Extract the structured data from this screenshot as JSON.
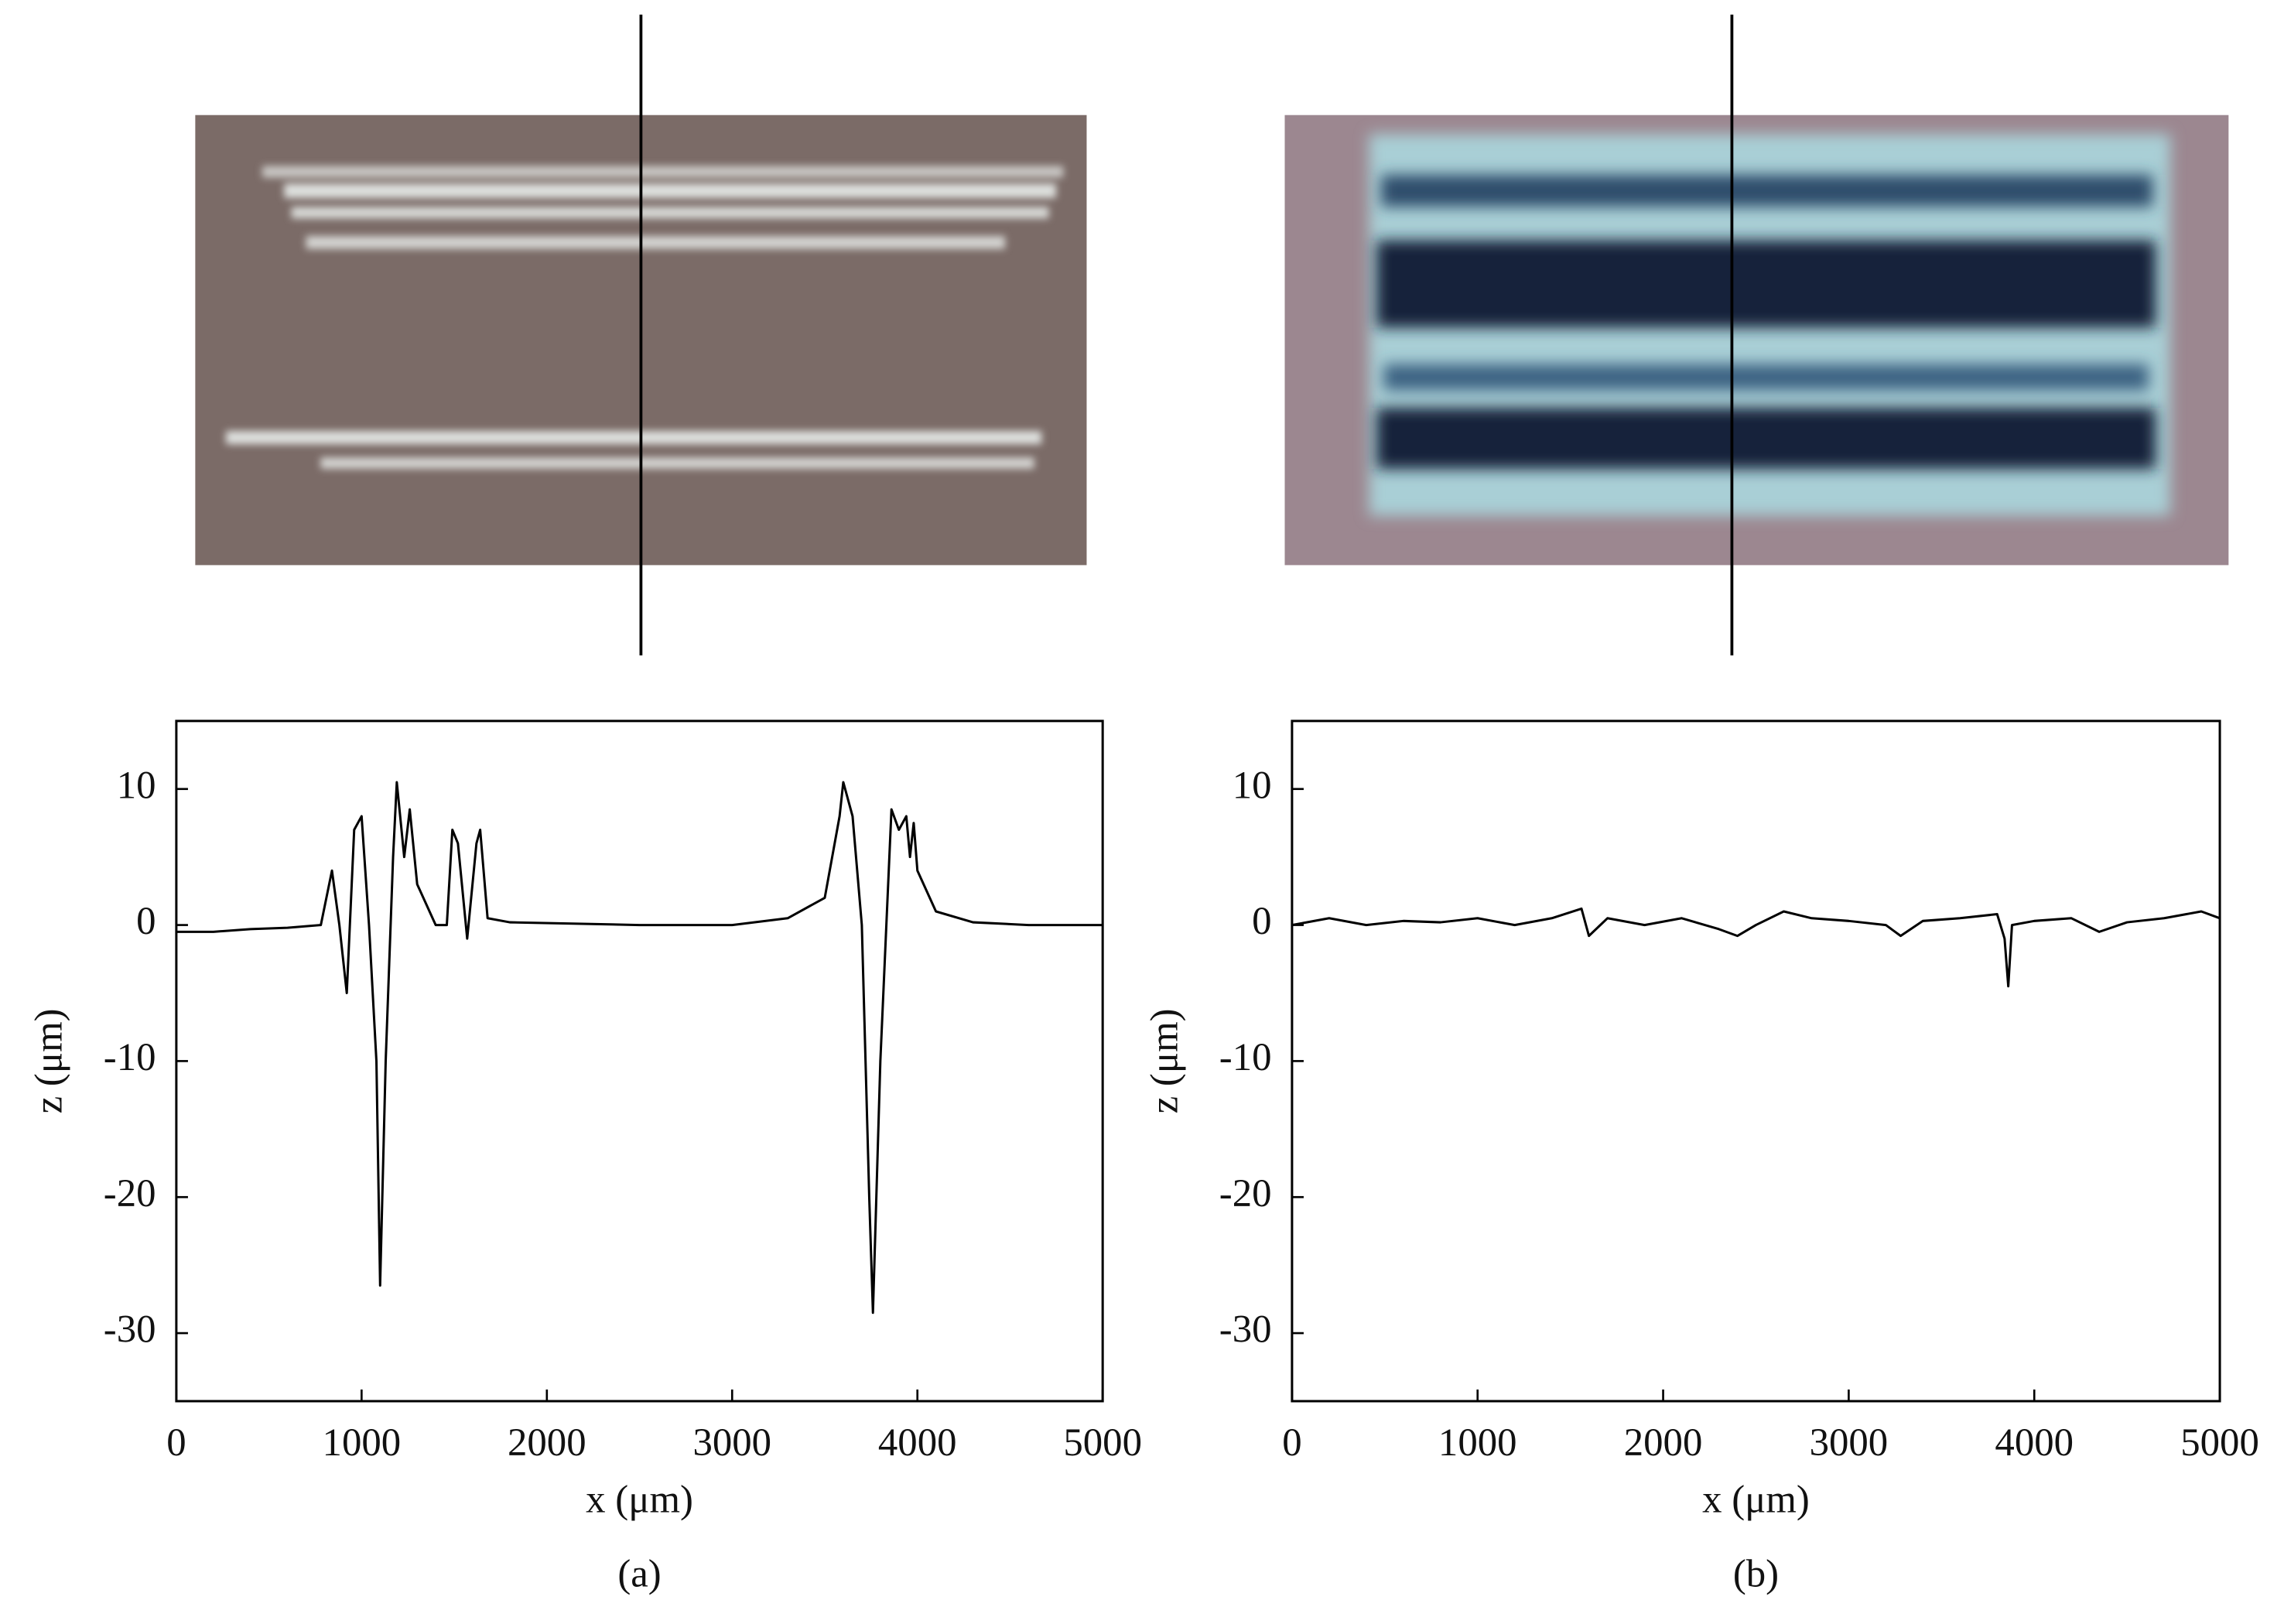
{
  "chart_data": [
    {
      "type": "line",
      "xlabel": "x (μm)",
      "ylabel": "z (μm)",
      "caption": "(a)",
      "color": "#000000",
      "xlim": [
        0,
        5000
      ],
      "xticks": [
        0,
        1000,
        2000,
        3000,
        4000,
        5000
      ],
      "ylim": [
        -35,
        15
      ],
      "yticks": [
        -30,
        -20,
        -10,
        0,
        10
      ],
      "x": [
        0,
        200,
        400,
        600,
        780,
        840,
        880,
        920,
        960,
        1000,
        1040,
        1080,
        1100,
        1130,
        1170,
        1190,
        1230,
        1260,
        1300,
        1400,
        1460,
        1490,
        1520,
        1570,
        1620,
        1640,
        1680,
        1800,
        2500,
        3000,
        3300,
        3500,
        3580,
        3600,
        3650,
        3700,
        3740,
        3760,
        3800,
        3860,
        3900,
        3940,
        3960,
        3980,
        4000,
        4100,
        4300,
        4600,
        5000
      ],
      "values": [
        -0.5,
        -0.5,
        -0.3,
        -0.2,
        0,
        4,
        0,
        -5,
        7,
        8,
        0,
        -10,
        -26.5,
        -10,
        5,
        10.5,
        5,
        8.5,
        3,
        0,
        0,
        7,
        6,
        -1,
        6,
        7,
        0.5,
        0.2,
        0,
        0,
        0.5,
        2,
        8,
        10.5,
        8,
        0,
        -20,
        -28.5,
        -10,
        8.5,
        7,
        8,
        5,
        7.5,
        4,
        1,
        0.2,
        0,
        0
      ]
    },
    {
      "type": "line",
      "xlabel": "x (μm)",
      "ylabel": "z (μm)",
      "caption": "(b)",
      "color": "#000000",
      "xlim": [
        0,
        5000
      ],
      "xticks": [
        0,
        1000,
        2000,
        3000,
        4000,
        5000
      ],
      "ylim": [
        -35,
        15
      ],
      "yticks": [
        -30,
        -20,
        -10,
        0,
        10
      ],
      "x": [
        0,
        200,
        400,
        600,
        800,
        1000,
        1200,
        1400,
        1560,
        1600,
        1700,
        1900,
        2100,
        2300,
        2400,
        2500,
        2650,
        2800,
        3000,
        3200,
        3280,
        3400,
        3600,
        3800,
        3840,
        3860,
        3880,
        4000,
        4200,
        4350,
        4500,
        4700,
        4900,
        5000
      ],
      "values": [
        0,
        0.5,
        0,
        0.3,
        0.2,
        0.5,
        0,
        0.5,
        1.2,
        -0.8,
        0.5,
        0,
        0.5,
        -0.3,
        -0.8,
        0,
        1,
        0.5,
        0.3,
        0,
        -0.8,
        0.3,
        0.5,
        0.8,
        -1,
        -4.5,
        0,
        0.3,
        0.5,
        -0.5,
        0.2,
        0.5,
        1,
        0.5
      ]
    }
  ]
}
